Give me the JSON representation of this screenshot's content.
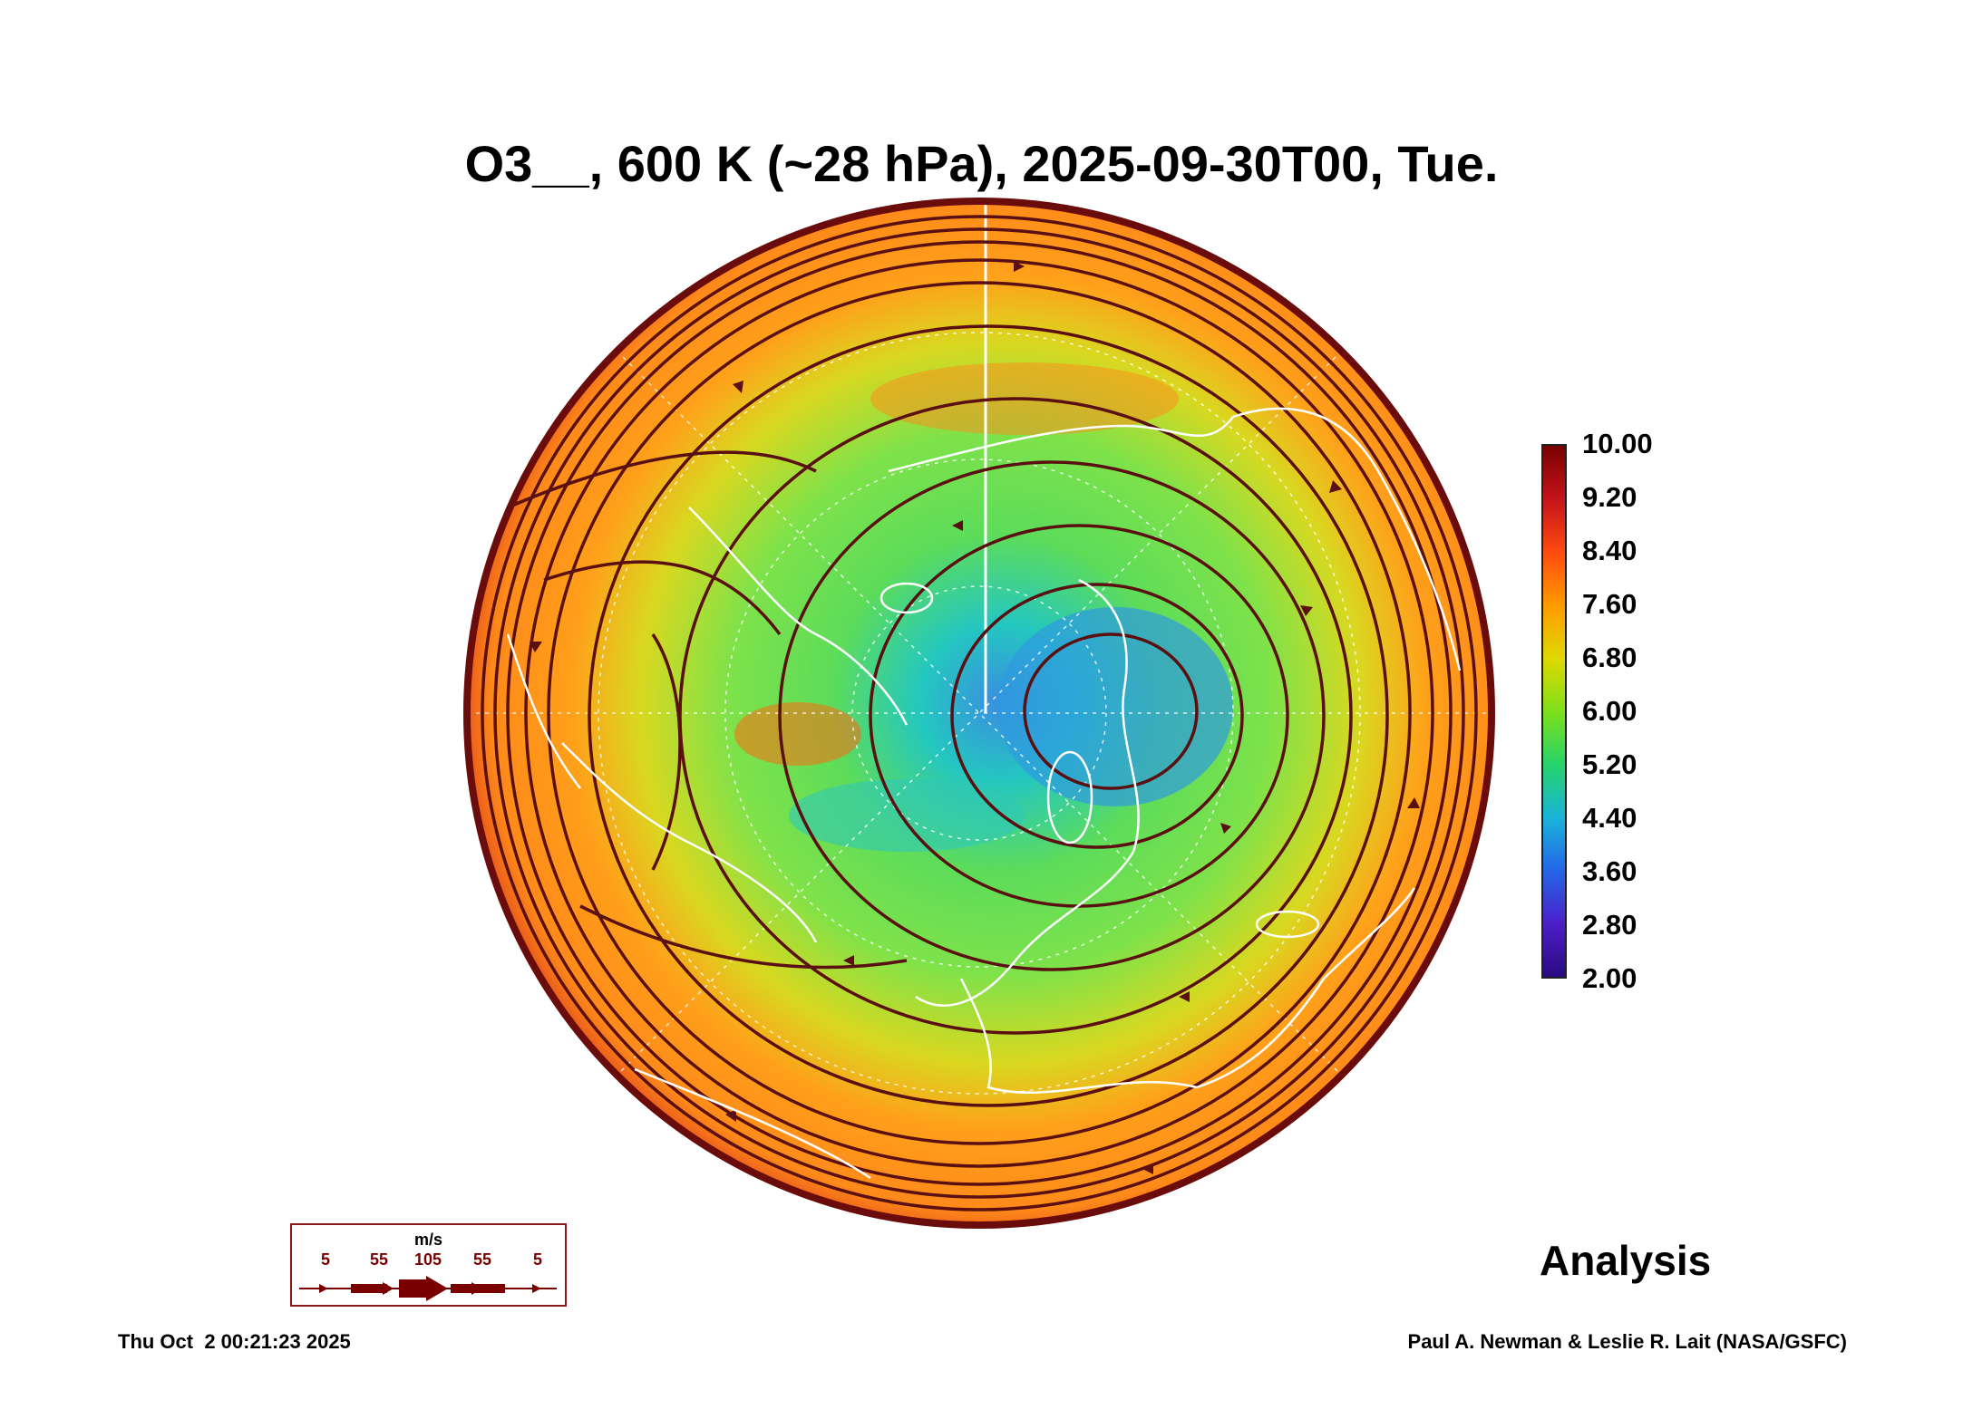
{
  "title": "O3__, 600 K (~28 hPa), 2025-09-30T00, Tue.",
  "colorbar": {
    "labels": [
      "10.00",
      "9.20",
      "8.40",
      "7.60",
      "6.80",
      "6.00",
      "5.20",
      "4.40",
      "3.60",
      "2.80",
      "2.00"
    ],
    "min": 2.0,
    "max": 10.0,
    "colors": [
      "#7a0000",
      "#c4141a",
      "#ff4a10",
      "#ff9a00",
      "#e0d800",
      "#7ee01a",
      "#27d36a",
      "#19b4d8",
      "#2466e8",
      "#4b1fc8",
      "#2a0a80"
    ]
  },
  "legend": {
    "unit": "m/s",
    "ticks": [
      "5",
      "55",
      "105",
      "55",
      "5"
    ],
    "color": "#7a0000"
  },
  "label_analysis": "Analysis",
  "footer": {
    "timestamp": "Thu Oct  2 00:21:23 2025",
    "credit": "Paul A. Newman & Leslie R. Lait (NASA/GSFC)"
  },
  "map_colors": {
    "rim": "#7a0f0f",
    "orange": "#ff9a1f",
    "green": "#78e24a",
    "cyan": "#24c7c0",
    "blue": "#3a8ee0",
    "coast": "#ffffff",
    "streamline": "#5a1010"
  }
}
